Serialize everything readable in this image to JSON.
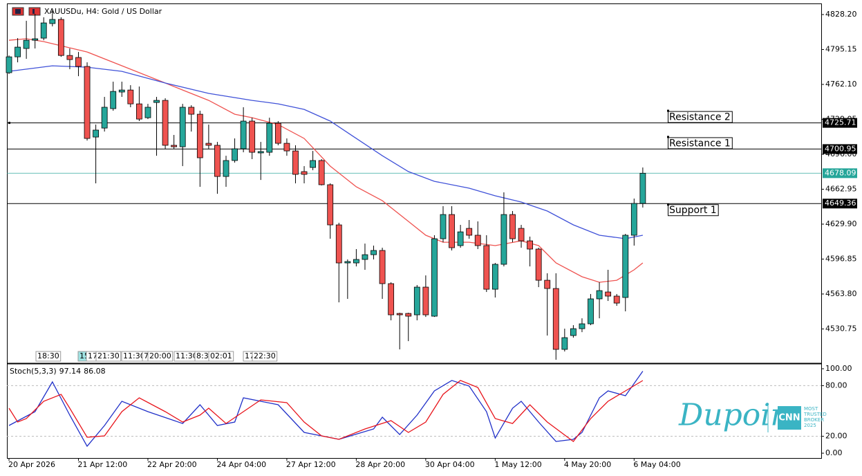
{
  "header": {
    "title": "XAUUSDu, H4: Gold / US Dollar",
    "time_markers": [
      "18:30",
      "15",
      "17",
      "21:30",
      "11:30",
      "7",
      "20:00",
      "11:30",
      "8:3",
      "02:01",
      "17",
      "22:30"
    ]
  },
  "logo": {
    "brand": "Dupoin",
    "badge": "CNN",
    "tagline": [
      "MOST",
      "TRUSTED",
      "BROKER",
      "2025"
    ]
  },
  "chart_data": [
    {
      "type": "candlestick",
      "up_color": "#26a69a",
      "down_color": "#ef5350",
      "ylim": [
        4498.3,
        4838.7
      ],
      "yticks": [
        {
          "value": 4828.2,
          "label": "4828.20"
        },
        4795.15,
        {
          "value": 4762.1,
          "label": "4762.10"
        },
        4729.05,
        {
          "value": 4696.0,
          "label": "4696.00"
        },
        4662.95,
        {
          "value": 4629.9,
          "label": "4629.90"
        },
        4596.85,
        {
          "value": 4563.8,
          "label": "4563.80"
        },
        4530.75
      ],
      "xticks": [
        {
          "value": 0,
          "label": "20 Apr 2026"
        },
        {
          "value": 8,
          "label": "21 Apr 12:00"
        },
        {
          "value": 16,
          "label": "22 Apr 20:00"
        },
        {
          "value": 24,
          "label": "24 Apr 04:00"
        },
        {
          "value": 32,
          "label": "27 Apr 12:00"
        },
        {
          "value": 40,
          "label": "28 Apr 20:00"
        },
        {
          "value": 48,
          "label": "30 Apr 04:00"
        },
        {
          "value": 56,
          "label": "1 May 12:00"
        },
        {
          "value": 64,
          "label": "4 May 20:00"
        },
        {
          "value": 72,
          "label": "6 May 04:00"
        }
      ],
      "open": [
        4773.2,
        4788.2,
        4796.1,
        4803.9,
        4805.9,
        4819.7,
        4823.6,
        4789.5,
        4787.6,
        4779.1,
        4712.3,
        4720.8,
        4739.2,
        4754.9,
        4756.8,
        4743.7,
        4730.6,
        4745.0,
        4747.0,
        4704.5,
        4703.1,
        4740.5,
        4733.9,
        4706.4,
        4704.5,
        4675.0,
        4690.1,
        4701.2,
        4727.4,
        4697.3,
        4697.9,
        4725.4,
        4706.4,
        4699.2,
        4679.6,
        4683.5,
        4690.1,
        4667.2,
        4629.2,
        4593.2,
        4593.2,
        4596.5,
        4601.0,
        4605.0,
        4573.6,
        4545.4,
        4545.4,
        4544.1,
        4570.3,
        4542.8,
        4616.1,
        4639.0,
        4609.6,
        4625.9,
        4619.4,
        4609.6,
        4568.3,
        4591.9,
        4639.0,
        4625.9,
        4614.1,
        4606.3,
        4576.8,
        4569.0,
        4511.4,
        4524.5,
        4531.0,
        4535.6,
        4559.2,
        4565.7,
        4561.8,
        4560.5,
        4619.4,
        4649.5
      ],
      "high": [
        4789.5,
        4805.9,
        4822.3,
        4828.8,
        4825.6,
        4832.1,
        4825.6,
        4796.1,
        4792.8,
        4783.0,
        4724.1,
        4750.3,
        4764.7,
        4764.7,
        4761.4,
        4760.1,
        4743.7,
        4750.3,
        4749.0,
        4714.3,
        4743.7,
        4742.4,
        4737.2,
        4724.1,
        4707.7,
        4694.6,
        4711.0,
        4740.5,
        4730.6,
        4707.7,
        4730.6,
        4727.4,
        4711.0,
        4704.5,
        4684.8,
        4699.2,
        4691.4,
        4668.5,
        4631.2,
        4596.5,
        4606.3,
        4611.5,
        4609.6,
        4607.6,
        4574.9,
        4546.1,
        4546.1,
        4572.3,
        4581.4,
        4619.4,
        4646.9,
        4646.9,
        4629.2,
        4633.8,
        4632.5,
        4619.4,
        4593.2,
        4660.0,
        4642.3,
        4629.2,
        4618.1,
        4607.6,
        4583.4,
        4583.4,
        4531.0,
        4534.3,
        4540.8,
        4563.8,
        4574.9,
        4586.7,
        4563.8,
        4620.7,
        4654.1,
        4683.5
      ],
      "low": [
        4771.9,
        4783.0,
        4786.3,
        4796.1,
        4803.9,
        4817.0,
        4788.2,
        4776.5,
        4769.9,
        4709.0,
        4668.5,
        4717.5,
        4737.2,
        4750.3,
        4740.5,
        4727.4,
        4729.3,
        4694.6,
        4701.2,
        4701.2,
        4684.8,
        4717.5,
        4665.2,
        4701.2,
        4658.6,
        4665.2,
        4688.1,
        4697.9,
        4691.4,
        4671.7,
        4694.6,
        4704.5,
        4694.6,
        4668.5,
        4668.5,
        4680.9,
        4666.5,
        4616.1,
        4555.9,
        4559.2,
        4589.9,
        4586.7,
        4596.5,
        4559.2,
        4538.9,
        4511.4,
        4519.2,
        4538.9,
        4542.1,
        4542.1,
        4612.8,
        4605.0,
        4607.6,
        4616.1,
        4606.3,
        4565.7,
        4560.5,
        4589.9,
        4612.8,
        4607.6,
        4589.9,
        4570.3,
        4524.5,
        4501.6,
        4509.4,
        4522.5,
        4527.7,
        4534.3,
        4540.8,
        4557.2,
        4552.6,
        4547.4,
        4609.6,
        4645.6
      ],
      "close": [
        4788.2,
        4797.4,
        4803.9,
        4805.3,
        4820.3,
        4823.6,
        4789.5,
        4785.6,
        4779.1,
        4711.0,
        4718.9,
        4740.5,
        4755.5,
        4756.8,
        4743.7,
        4729.3,
        4740.5,
        4747.0,
        4704.5,
        4703.1,
        4740.5,
        4733.9,
        4692.7,
        4704.5,
        4675.0,
        4690.1,
        4701.2,
        4727.4,
        4697.9,
        4698.6,
        4725.4,
        4706.4,
        4699.2,
        4677.0,
        4677.0,
        4690.1,
        4667.2,
        4629.2,
        4593.2,
        4594.5,
        4596.5,
        4601.0,
        4605.0,
        4573.6,
        4544.1,
        4544.1,
        4542.8,
        4570.3,
        4544.1,
        4616.1,
        4639.0,
        4607.6,
        4622.6,
        4619.4,
        4609.6,
        4568.3,
        4591.9,
        4639.0,
        4616.1,
        4614.1,
        4606.3,
        4576.8,
        4569.0,
        4511.4,
        4522.5,
        4531.0,
        4535.6,
        4559.2,
        4567.0,
        4561.8,
        4555.2,
        4619.4,
        4649.5,
        4678.09
      ],
      "last_price_color": "#26a69a",
      "overlays": [
        {
          "color": "#ef5350",
          "x": [
            0,
            2,
            4,
            8,
            9,
            14,
            18,
            20,
            23,
            26,
            28,
            31,
            34,
            37,
            40,
            43,
            46,
            48,
            50,
            53,
            56,
            59,
            61,
            63,
            66,
            68,
            70,
            72,
            73
          ],
          "values": [
            4803.9,
            4805.3,
            4802.6,
            4794.8,
            4792.8,
            4776.5,
            4763.4,
            4756.8,
            4747.0,
            4733.9,
            4730.6,
            4724.1,
            4711.0,
            4684.8,
            4665.2,
            4652.1,
            4632.5,
            4619.4,
            4612.8,
            4612.8,
            4609.6,
            4614.1,
            4609.6,
            4593.2,
            4580.1,
            4574.9,
            4576.8,
            4586.7,
            4593.2
          ]
        },
        {
          "color": "#3f51d8",
          "x": [
            0,
            5,
            9,
            13,
            18,
            23,
            28,
            31,
            34,
            37,
            40,
            43,
            46,
            49,
            53,
            56,
            59,
            62,
            65,
            68,
            71,
            73
          ],
          "values": [
            4774.5,
            4779.7,
            4778.4,
            4774.5,
            4763.4,
            4753.6,
            4747.0,
            4743.7,
            4738.5,
            4727.4,
            4711.0,
            4694.6,
            4679.6,
            4670.4,
            4663.9,
            4656.7,
            4650.8,
            4642.3,
            4629.2,
            4619.4,
            4616.1,
            4619.4
          ]
        }
      ],
      "levels": [
        {
          "label": "Resistance 2",
          "value": 4725.71
        },
        {
          "label": "Resistance 1",
          "value": 4700.95
        },
        {
          "label": "Support 1",
          "value": 4649.36
        }
      ]
    },
    {
      "type": "line",
      "title": "Stoch(5,3,3)",
      "ylim": [
        -5.7,
        104.9
      ],
      "yticks": [
        {
          "value": 100,
          "label": "100.00"
        },
        {
          "value": 80,
          "label": "80.00"
        },
        {
          "value": 20,
          "label": "20.00"
        },
        {
          "value": 0,
          "label": "0.00"
        }
      ],
      "dashed_levels": [
        80,
        20
      ],
      "series": [
        {
          "color": "#1f2fc8",
          "x": [
            0,
            3,
            5,
            7,
            9,
            11,
            13,
            16,
            20,
            22,
            24,
            26,
            27,
            31,
            34,
            38,
            42,
            43,
            45,
            47,
            49,
            51,
            53,
            55,
            56,
            58,
            59,
            61,
            63,
            65,
            66,
            68,
            69,
            71,
            73
          ],
          "values": [
            32.8,
            49.2,
            84.4,
            45.1,
            8.2,
            32.8,
            61.5,
            49.2,
            35.2,
            57.4,
            32.8,
            36.9,
            65.6,
            57.4,
            24.6,
            16.4,
            28.7,
            42.6,
            22.1,
            45.1,
            73.8,
            86.1,
            79.5,
            49.2,
            18.0,
            53.3,
            61.5,
            36.9,
            13.9,
            16.4,
            24.6,
            65.6,
            73.8,
            68.0,
            97.14
          ]
        },
        {
          "color": "#e8141b",
          "x": [
            0,
            1,
            2,
            4,
            6,
            7,
            9,
            11,
            13,
            15,
            18,
            20,
            22,
            23,
            25,
            27,
            29,
            32,
            34,
            36,
            38,
            41,
            44,
            46,
            48,
            50,
            52,
            54,
            56,
            58,
            60,
            62,
            65,
            67,
            69,
            71,
            73
          ],
          "values": [
            53.3,
            36.9,
            41.0,
            61.5,
            69.7,
            53.3,
            18.9,
            20.5,
            49.2,
            65.6,
            49.2,
            36.9,
            45.1,
            53.3,
            35.2,
            49.2,
            63.1,
            59.8,
            36.9,
            20.5,
            16.4,
            28.7,
            38.5,
            24.6,
            36.9,
            69.7,
            86.1,
            77.9,
            41.0,
            35.2,
            57.4,
            36.9,
            13.9,
            41.0,
            61.5,
            73.8,
            86.08
          ]
        }
      ]
    }
  ]
}
